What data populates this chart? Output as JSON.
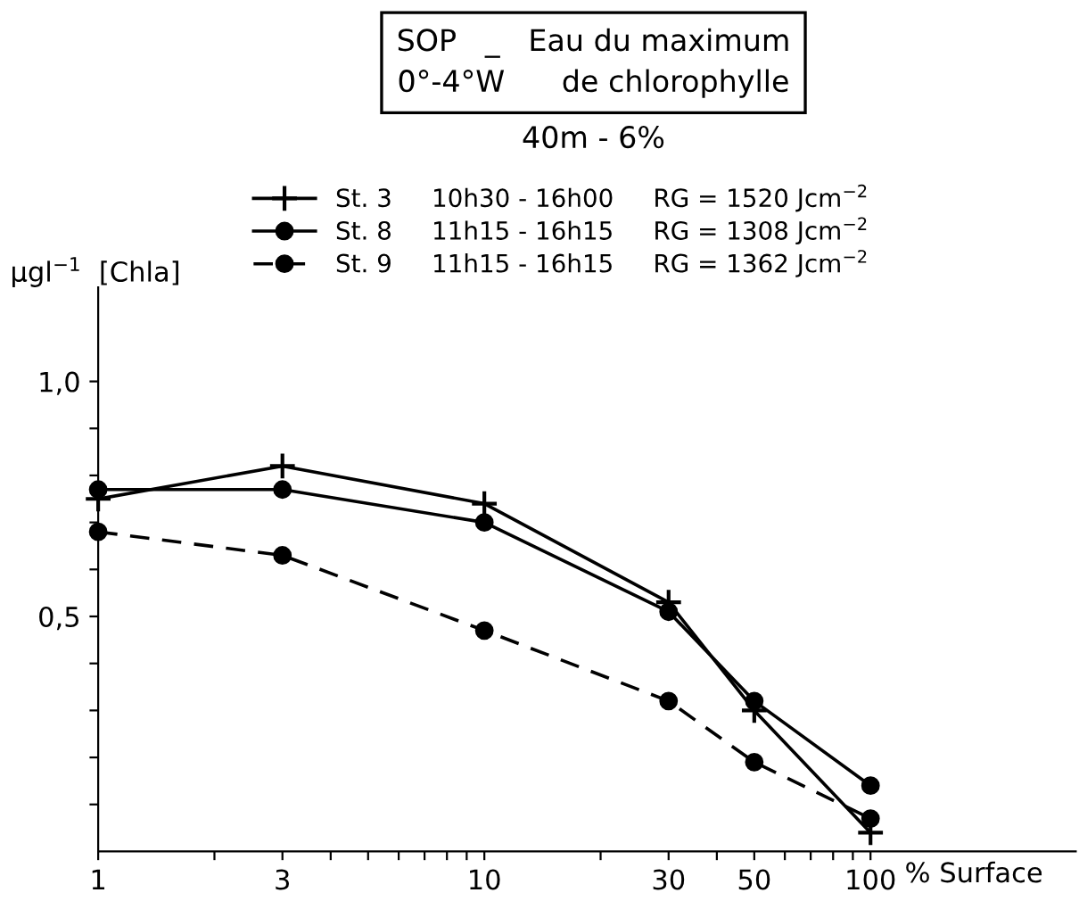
{
  "chart_data": {
    "type": "line",
    "title": "SOP   _   Eau du maximum\n0°-4°W      de chlorophylle",
    "subtitle": "40m - 6%",
    "ylabel": "µgl$^{−1}$  [Chla]",
    "xlabel": "% Surface",
    "log": "x",
    "x": [
      1,
      3,
      10,
      30,
      50,
      100
    ],
    "series": [
      {
        "name": "St. 3     10h30 - 16h00     RG = 1520 Jcm$^{−2}$",
        "color": "#000000",
        "marker": "cross",
        "line_style": "solid",
        "values": [
          0.75,
          0.82,
          0.74,
          0.53,
          0.3,
          0.04
        ]
      },
      {
        "name": "St. 8     11h15 - 16h15     RG = 1308 Jcm$^{−2}$",
        "color": "#000000",
        "marker": "circle",
        "line_style": "solid",
        "values": [
          0.77,
          0.77,
          0.7,
          0.51,
          0.32,
          0.14
        ]
      },
      {
        "name": "St. 9     11h15 - 16h15     RG = 1362 Jcm$^{−2}$",
        "color": "#000000",
        "marker": "circle",
        "line_style": "dashed",
        "values": [
          0.68,
          0.63,
          0.47,
          0.32,
          0.19,
          0.07
        ]
      }
    ],
    "xlim": [
      1,
      340
    ],
    "ylim": [
      0,
      1.2
    ],
    "xticks": [
      1,
      {
        "value": 2,
        "label": null
      },
      3,
      {
        "value": 4,
        "label": null
      },
      {
        "value": 5,
        "label": null
      },
      {
        "value": 6,
        "label": null
      },
      {
        "value": 7,
        "label": null
      },
      {
        "value": 8,
        "label": null
      },
      {
        "value": 9,
        "label": null
      },
      10,
      {
        "value": 20,
        "label": null
      },
      30,
      {
        "value": 40,
        "label": null
      },
      50,
      {
        "value": 60,
        "label": null
      },
      {
        "value": 70,
        "label": null
      },
      {
        "value": 80,
        "label": null
      },
      {
        "value": 90,
        "label": null
      },
      100
    ],
    "yticks": [
      {
        "value": 0.1,
        "label": null
      },
      {
        "value": 0.2,
        "label": null
      },
      {
        "value": 0.3,
        "label": null
      },
      {
        "value": 0.4,
        "label": null
      },
      {
        "value": 0.5,
        "label": "0,5"
      },
      {
        "value": 0.6,
        "label": null
      },
      {
        "value": 0.7,
        "label": null
      },
      {
        "value": 0.8,
        "label": null
      },
      {
        "value": 0.9,
        "label": null
      },
      {
        "value": 1.0,
        "label": "1,0"
      }
    ],
    "grid": false,
    "legend": "top"
  }
}
